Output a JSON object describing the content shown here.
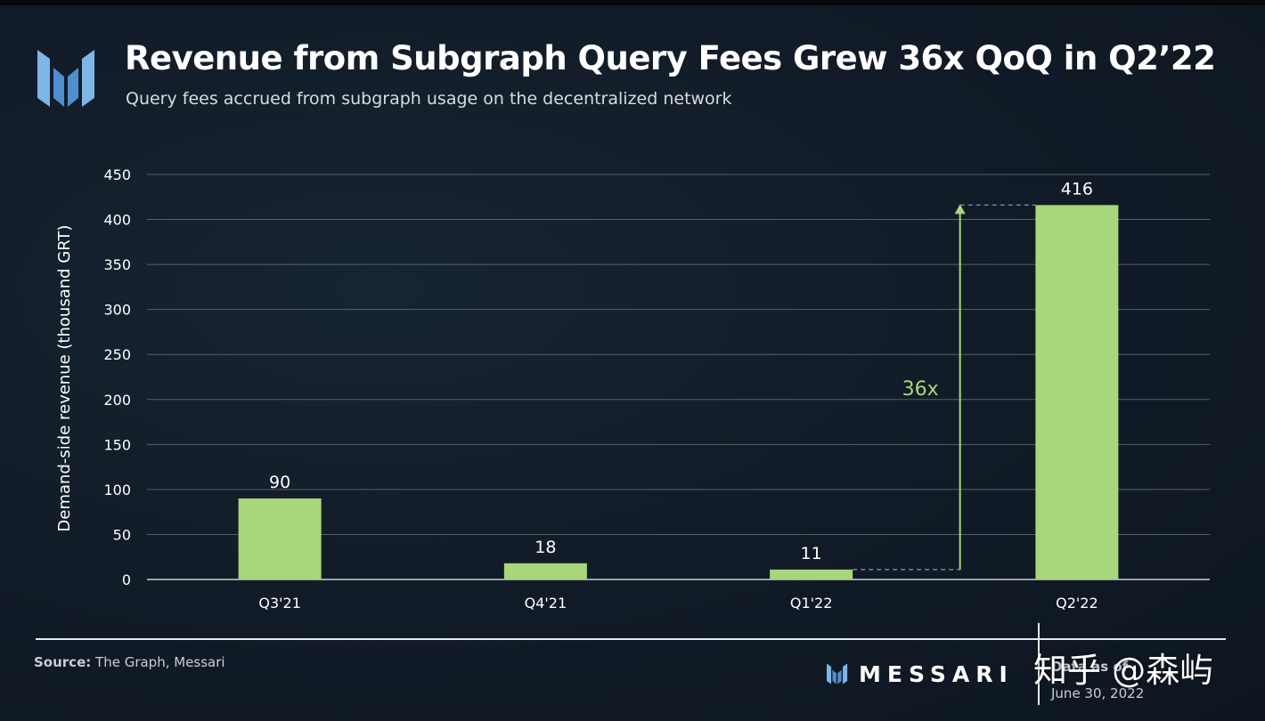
{
  "header": {
    "title": "Revenue from Subgraph Query Fees Grew 36x QoQ in Q2’22",
    "subtitle": "Query fees accrued from subgraph usage on the decentralized network"
  },
  "colors": {
    "bar": "#a8d67a",
    "annotation": "#a8d67a",
    "grid": "#55606b",
    "text": "#ffffff"
  },
  "chart_data": {
    "type": "bar",
    "title": "Revenue from Subgraph Query Fees Grew 36x QoQ in Q2’22",
    "xlabel": "",
    "ylabel": "Demand-side revenue (thousand GRT)",
    "categories": [
      "Q3'21",
      "Q4'21",
      "Q1'22",
      "Q2'22"
    ],
    "values": [
      90,
      18,
      11,
      416
    ],
    "value_labels": [
      "90",
      "18",
      "11",
      "416"
    ],
    "ylim": [
      0,
      450
    ],
    "yticks": [
      0,
      50,
      100,
      150,
      200,
      250,
      300,
      350,
      400,
      450
    ],
    "grid": true,
    "annotation": {
      "text": "36x",
      "from_category": "Q1'22",
      "to_category": "Q2'22",
      "from_value": 11,
      "to_value": 416
    }
  },
  "footer": {
    "source_label": "Source:",
    "source_text": "The Graph, Messari",
    "brand": "MESSARI",
    "date_label": "Data as of",
    "date": "June 30, 2022",
    "watermark": "知乎 @森屿"
  }
}
